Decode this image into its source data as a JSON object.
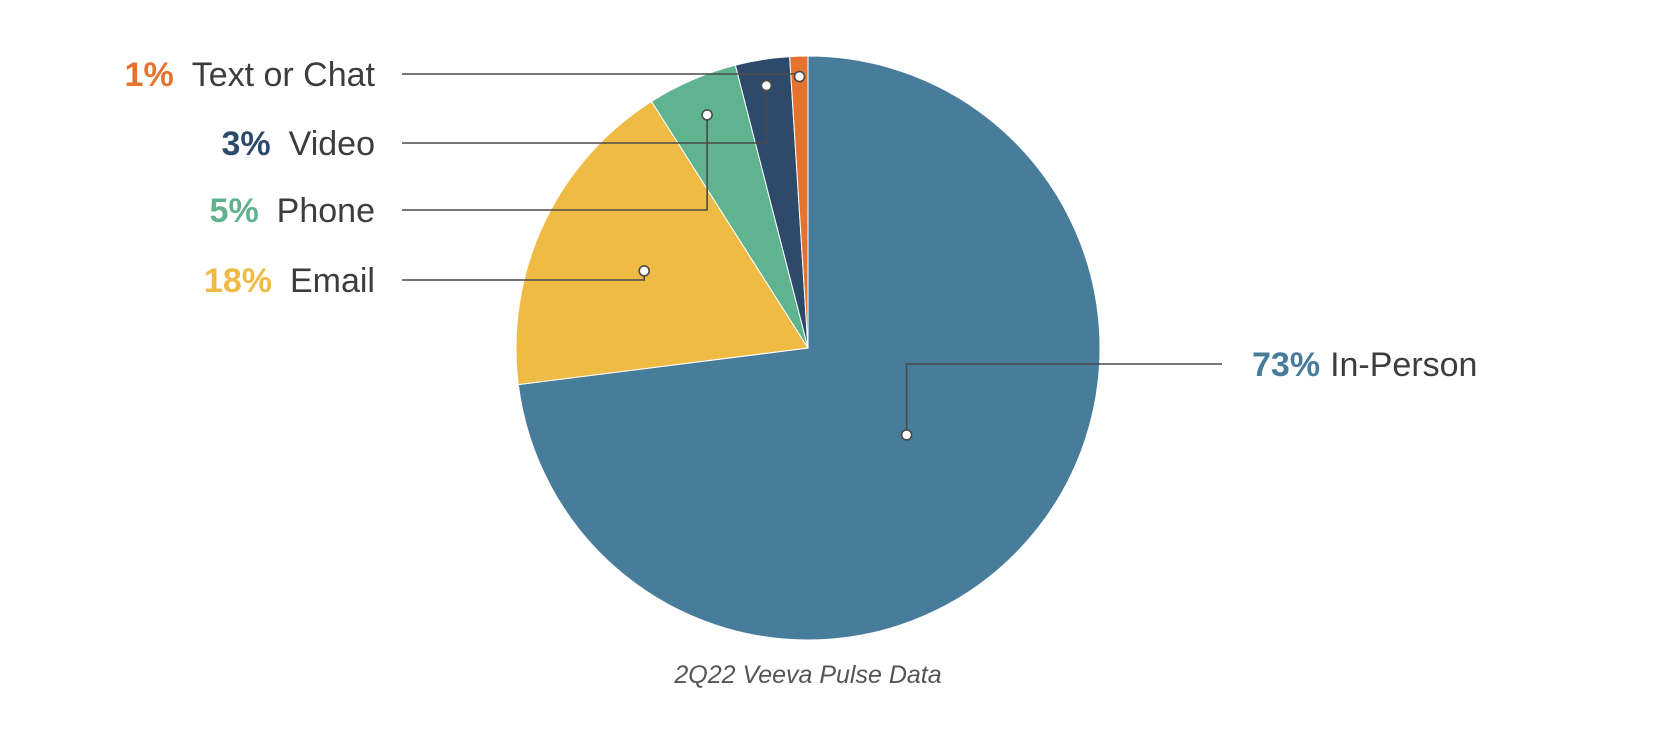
{
  "chart_data": {
    "type": "pie",
    "title": "",
    "source_caption": "2Q22 Veeva Pulse Data",
    "start": "12 o'clock",
    "direction": "clockwise",
    "slices": [
      {
        "key": "in-person",
        "label": "In-Person",
        "percent_label": "73%",
        "value": 73,
        "color": "#477c9b"
      },
      {
        "key": "email",
        "label": "Email",
        "percent_label": "18%",
        "value": 18,
        "color": "#f0bb44"
      },
      {
        "key": "phone",
        "label": "Phone",
        "percent_label": "5%",
        "value": 5,
        "color": "#5fb48f"
      },
      {
        "key": "video",
        "label": "Video",
        "percent_label": "3%",
        "value": 3,
        "color": "#2e4a6b"
      },
      {
        "key": "text-or-chat",
        "label": "Text or Chat",
        "percent_label": "1%",
        "value": 1,
        "color": "#e5722e"
      }
    ]
  }
}
